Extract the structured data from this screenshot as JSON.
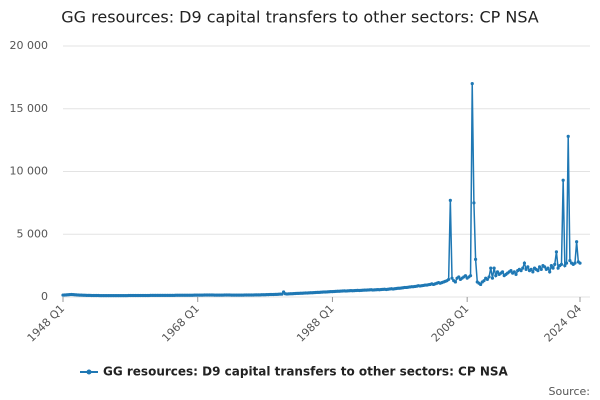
{
  "chart_data": {
    "type": "line",
    "title": "GG resources: D9 capital transfers to other sectors: CP NSA",
    "source": "Source:",
    "categories": [
      "1948 Q1",
      null,
      null,
      null,
      null,
      null,
      null,
      null,
      null,
      null,
      null,
      null,
      null,
      null,
      null,
      null,
      null,
      null,
      null,
      null,
      null,
      null,
      null,
      null,
      null,
      null,
      null,
      null,
      null,
      null,
      null,
      null,
      null,
      null,
      null,
      null,
      null,
      null,
      null,
      null,
      null,
      null,
      null,
      null,
      null,
      null,
      null,
      null,
      null,
      null,
      null,
      null,
      null,
      null,
      null,
      null,
      null,
      null,
      null,
      null,
      null,
      null,
      null,
      null,
      null,
      null,
      null,
      null,
      null,
      null,
      null,
      null,
      null,
      null,
      null,
      null,
      null,
      null,
      null,
      null,
      "1968 Q1",
      null,
      null,
      null,
      null,
      null,
      null,
      null,
      null,
      null,
      null,
      null,
      null,
      null,
      null,
      null,
      null,
      null,
      null,
      null,
      null,
      null,
      null,
      null,
      null,
      null,
      null,
      null,
      null,
      null,
      null,
      null,
      null,
      null,
      null,
      null,
      null,
      null,
      null,
      null,
      null,
      null,
      null,
      null,
      null,
      null,
      null,
      null,
      null,
      null,
      null,
      null,
      null,
      null,
      null,
      null,
      null,
      null,
      null,
      null,
      null,
      null,
      null,
      null,
      null,
      null,
      null,
      null,
      null,
      null,
      null,
      null,
      null,
      null,
      null,
      null,
      null,
      null,
      null,
      null,
      "1988 Q1",
      null,
      null,
      null,
      null,
      null,
      null,
      null,
      null,
      null,
      null,
      null,
      null,
      null,
      null,
      null,
      null,
      null,
      null,
      null,
      null,
      null,
      null,
      null,
      null,
      null,
      null,
      null,
      null,
      null,
      null,
      null,
      null,
      null,
      null,
      null,
      null,
      null,
      null,
      null,
      null,
      null,
      null,
      null,
      null,
      null,
      null,
      null,
      null,
      null,
      null,
      null,
      null,
      null,
      null,
      null,
      null,
      null,
      null,
      null,
      null,
      null,
      null,
      null,
      null,
      null,
      null,
      null,
      null,
      null,
      null,
      null,
      null,
      null,
      null,
      null,
      null,
      null,
      null,
      null,
      "2008 Q1",
      null,
      null,
      null,
      null,
      null,
      null,
      null,
      null,
      null,
      null,
      null,
      null,
      null,
      null,
      null,
      null,
      null,
      null,
      null,
      null,
      null,
      null,
      null,
      null,
      null,
      null,
      null,
      null,
      null,
      null,
      null,
      null,
      null,
      null,
      null,
      null,
      null,
      null,
      null,
      null,
      null,
      null,
      null,
      null,
      null,
      null,
      null,
      null,
      null,
      null,
      null,
      null,
      null,
      null,
      null,
      null,
      null,
      null,
      null,
      null,
      null,
      null,
      null,
      null,
      null,
      null,
      "2024 Q4"
    ],
    "series": [
      {
        "name": "GG resources: D9 capital transfers to other sectors: CP NSA",
        "color": "#1f78b4",
        "values": [
          150,
          160,
          170,
          180,
          190,
          200,
          190,
          180,
          170,
          160,
          150,
          150,
          140,
          140,
          130,
          130,
          130,
          120,
          120,
          120,
          120,
          120,
          110,
          110,
          110,
          110,
          110,
          110,
          110,
          110,
          110,
          110,
          110,
          110,
          110,
          110,
          110,
          110,
          110,
          120,
          120,
          120,
          120,
          120,
          120,
          120,
          120,
          120,
          120,
          120,
          120,
          120,
          130,
          130,
          130,
          130,
          130,
          130,
          130,
          130,
          130,
          130,
          130,
          130,
          130,
          130,
          130,
          140,
          140,
          140,
          140,
          140,
          140,
          140,
          140,
          140,
          140,
          140,
          150,
          150,
          150,
          150,
          150,
          150,
          160,
          160,
          160,
          160,
          160,
          160,
          150,
          150,
          150,
          150,
          150,
          150,
          160,
          160,
          160,
          160,
          150,
          150,
          150,
          150,
          150,
          150,
          150,
          150,
          160,
          160,
          160,
          160,
          160,
          160,
          170,
          170,
          170,
          170,
          180,
          180,
          180,
          190,
          190,
          200,
          200,
          200,
          210,
          210,
          220,
          230,
          230,
          400,
          260,
          240,
          250,
          260,
          260,
          270,
          280,
          290,
          290,
          300,
          300,
          310,
          320,
          320,
          330,
          340,
          340,
          350,
          360,
          370,
          370,
          380,
          390,
          400,
          400,
          410,
          420,
          430,
          430,
          440,
          450,
          460,
          460,
          470,
          480,
          490,
          480,
          490,
          500,
          510,
          500,
          510,
          520,
          530,
          520,
          530,
          540,
          550,
          550,
          560,
          570,
          580,
          560,
          570,
          580,
          590,
          580,
          600,
          610,
          620,
          600,
          620,
          640,
          660,
          640,
          660,
          680,
          700,
          700,
          720,
          740,
          760,
          760,
          780,
          800,
          820,
          820,
          840,
          860,
          900,
          880,
          900,
          920,
          950,
          950,
          980,
          1000,
          1050,
          1000,
          1050,
          1100,
          1150,
          1100,
          1150,
          1200,
          1250,
          1300,
          1400,
          7700,
          1500,
          1300,
          1200,
          1500,
          1600,
          1400,
          1500,
          1600,
          1700,
          1500,
          1600,
          1700,
          17000,
          7500,
          3000,
          1200,
          1100,
          1000,
          1200,
          1300,
          1500,
          1400,
          1600,
          2300,
          1500,
          2300,
          1700,
          2000,
          1800,
          1900,
          2000,
          1700,
          1800,
          1900,
          2000,
          2100,
          1900,
          2000,
          1800,
          2100,
          2200,
          2100,
          2300,
          2700,
          2200,
          2400,
          2100,
          2200,
          2000,
          2300,
          2200,
          2100,
          2400,
          2200,
          2500,
          2400,
          2200,
          2300,
          2000,
          2500,
          2300,
          2600,
          3600,
          2300,
          2500,
          2600,
          9300,
          2500,
          2700,
          12800,
          2900,
          2700,
          2600,
          2700,
          4400,
          2800,
          2700
        ]
      }
    ],
    "ylim": [
      0,
      20000
    ],
    "yticks": [
      0,
      {
        "value": 5000,
        "label": "5 000"
      },
      {
        "value": 10000,
        "label": "10 000"
      },
      {
        "value": 15000,
        "label": "15 000"
      },
      {
        "value": 20000,
        "label": "20 000"
      }
    ],
    "grid": true,
    "legend": "bottom"
  }
}
